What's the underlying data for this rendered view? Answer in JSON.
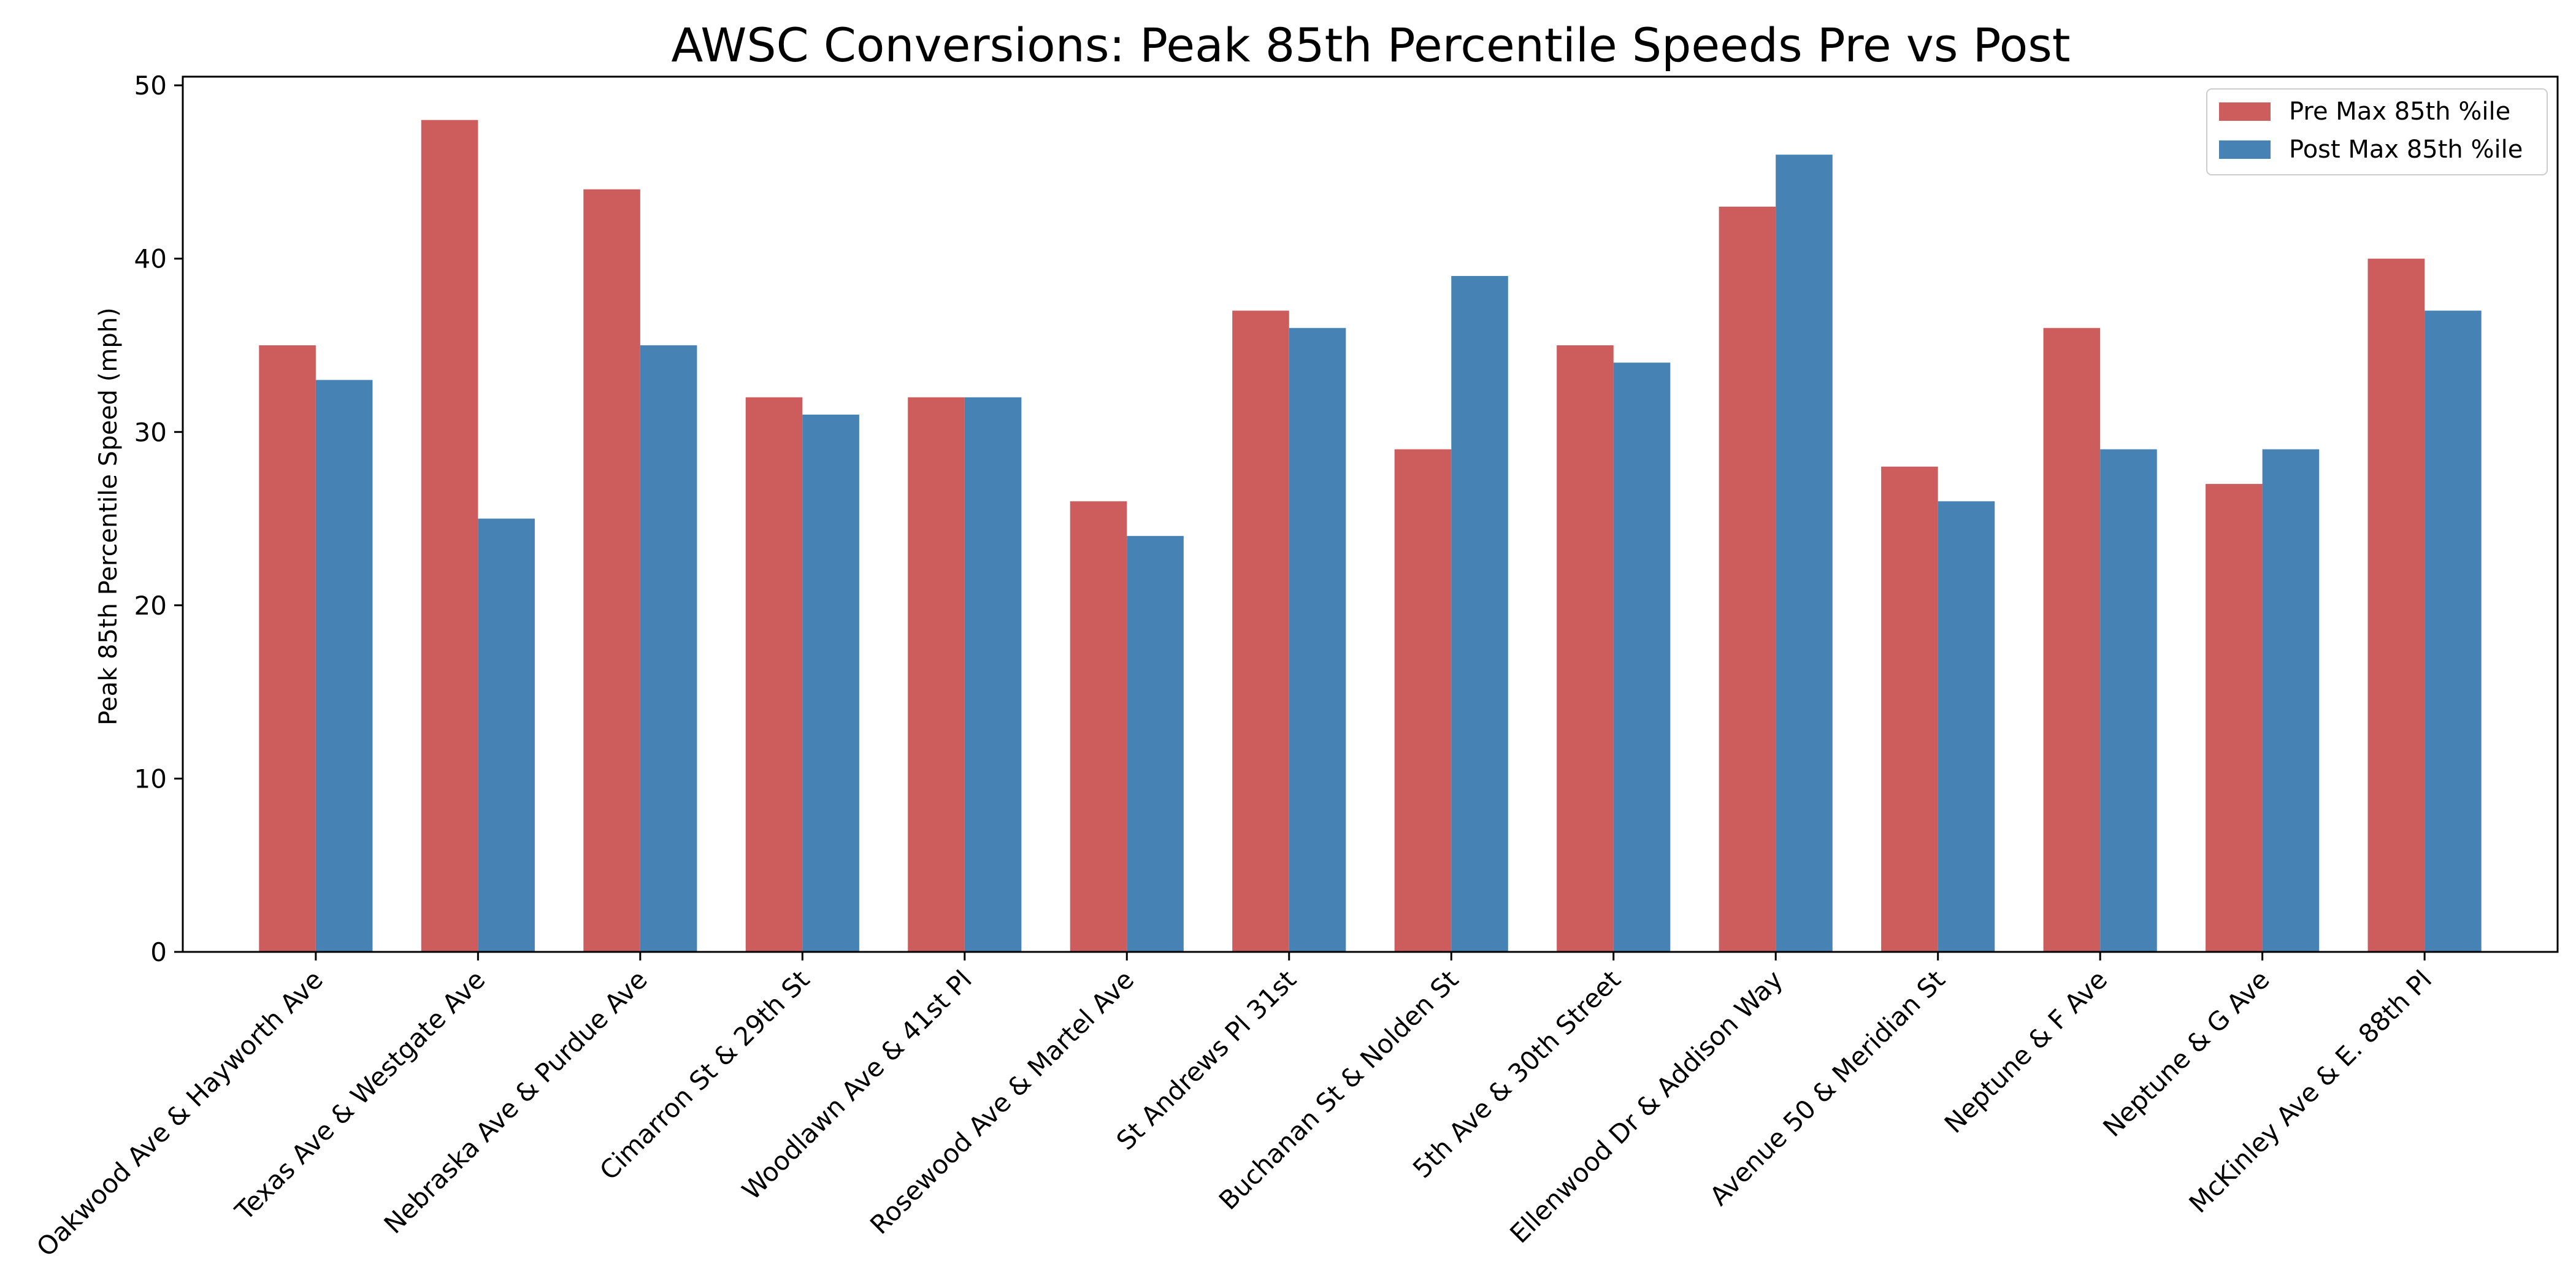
{
  "colors": {
    "pre": "#cd5c5c",
    "post": "#4682b4"
  },
  "chart_data": {
    "type": "bar",
    "title": "AWSC Conversions: Peak 85th Percentile Speeds Pre vs Post",
    "xlabel": "",
    "ylabel": "Peak 85th Percentile Speed (mph)",
    "ylim": [
      0,
      50.5
    ],
    "yticks": [
      0,
      10,
      20,
      30,
      40,
      50
    ],
    "grid": false,
    "legend_position": "top-right",
    "categories": [
      "Oakwood Ave & Hayworth Ave",
      "Texas Ave & Westgate Ave",
      "Nebraska Ave & Purdue Ave",
      "Cimarron St & 29th St",
      "Woodlawn Ave & 41st Pl",
      "Rosewood Ave & Martel Ave",
      "St Andrews Pl 31st",
      "Buchanan St & Nolden St",
      "5th Ave & 30th Street",
      "Ellenwood Dr & Addison Way",
      "Avenue 50 & Meridian St",
      "Neptune & F Ave",
      "Neptune & G Ave",
      "McKinley Ave & E. 88th Pl"
    ],
    "series": [
      {
        "name": "Pre Max 85th %ile",
        "values": [
          35,
          48,
          44,
          32,
          32,
          26,
          37,
          29,
          35,
          43,
          28,
          36,
          27,
          40
        ]
      },
      {
        "name": "Post Max 85th %ile",
        "values": [
          33,
          25,
          35,
          31,
          32,
          24,
          36,
          39,
          34,
          46,
          26,
          29,
          29,
          37
        ]
      }
    ]
  }
}
